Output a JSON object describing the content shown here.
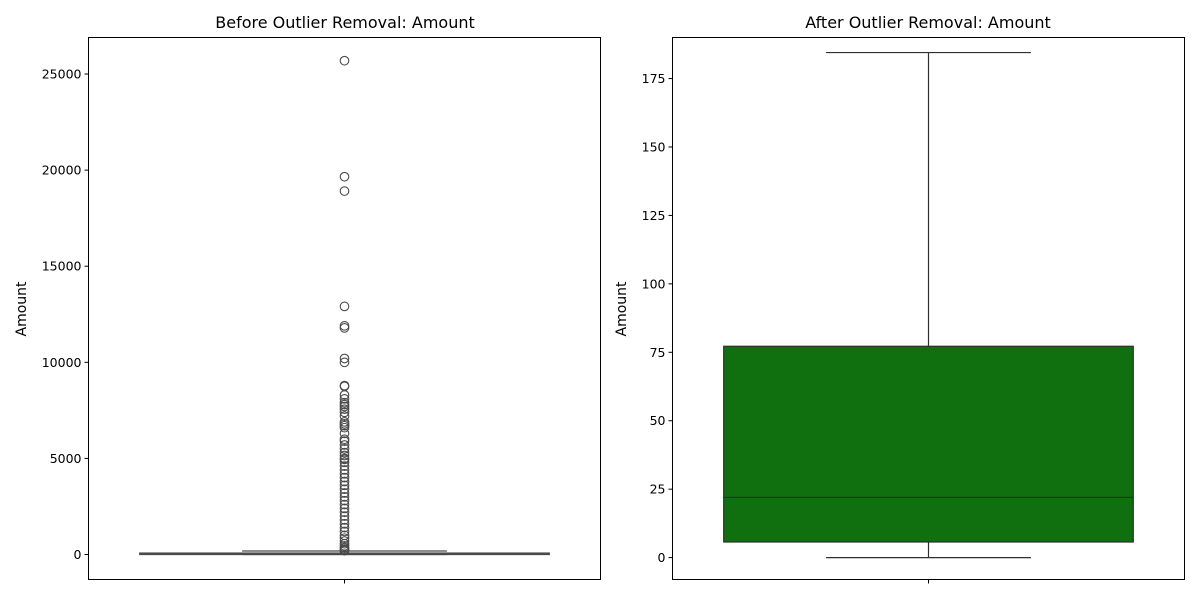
{
  "chart_data": [
    {
      "type": "box",
      "title": "Before Outlier Removal: Amount",
      "xlabel": "",
      "ylabel": "Amount",
      "ylim": [
        -1300,
        26900
      ],
      "yticks": [
        0,
        5000,
        10000,
        15000,
        20000,
        25000
      ],
      "box_color": "#4f7bb5",
      "line_color": "#4a4a4a",
      "grid": false,
      "stats": {
        "whisker_low": 0,
        "q1": 5.6,
        "median": 22.0,
        "q3": 77.2,
        "whisker_high": 184.5
      },
      "outliers": [
        25691,
        19656,
        18910,
        12910,
        11898,
        11790,
        10199,
        10000,
        8790,
        8750,
        8300,
        8100,
        7900,
        7800,
        7700,
        7560,
        7400,
        7200,
        6900,
        6800,
        6700,
        6600,
        6300,
        6000,
        5900,
        5700,
        5500,
        5300,
        5150,
        5000,
        4950,
        4800,
        4600,
        4400,
        4200,
        4000,
        3800,
        3600,
        3400,
        3200,
        3000,
        2800,
        2600,
        2400,
        2200,
        2000,
        1800,
        1600,
        1400,
        1200,
        1000,
        850,
        700,
        560,
        450,
        360,
        290,
        230,
        200
      ]
    },
    {
      "type": "box",
      "title": "After Outlier Removal: Amount",
      "xlabel": "",
      "ylabel": "Amount",
      "ylim": [
        -8,
        190
      ],
      "yticks": [
        0,
        25,
        50,
        75,
        100,
        125,
        150,
        175
      ],
      "box_color": "#107010",
      "line_color": "#2f2f2f",
      "grid": false,
      "stats": {
        "whisker_low": 0,
        "q1": 5.7,
        "median": 22.0,
        "q3": 77.2,
        "whisker_high": 184.5
      },
      "outliers": []
    }
  ]
}
